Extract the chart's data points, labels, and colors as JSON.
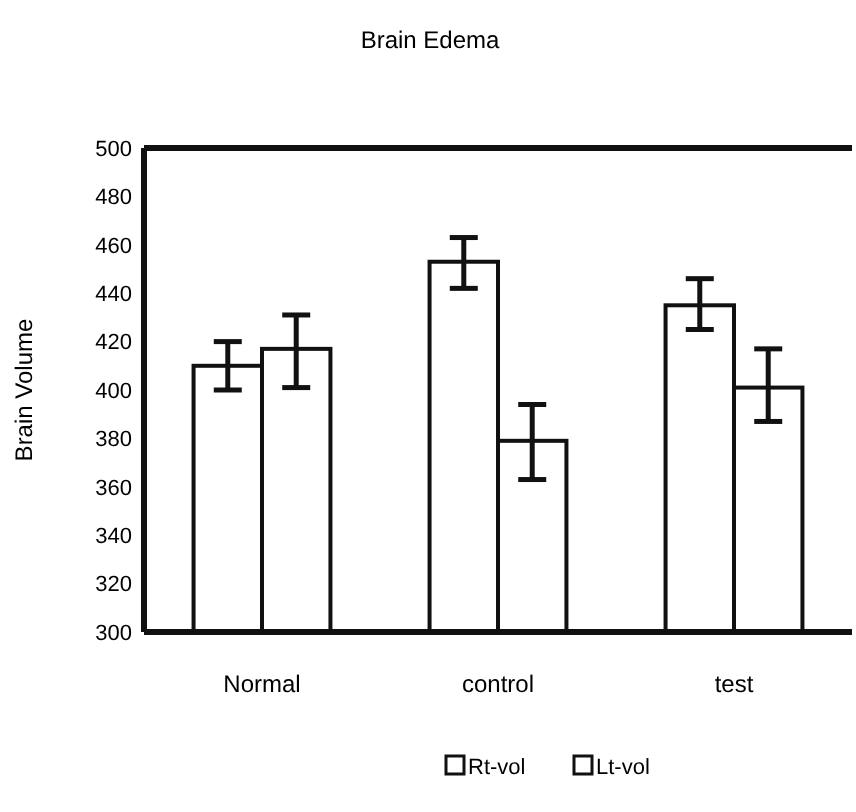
{
  "chart_data": {
    "type": "bar",
    "title": "Brain Edema",
    "ylabel": "Brain Volume",
    "categories": [
      "Normal",
      "control",
      "test"
    ],
    "series": [
      {
        "name": "Rt-vol",
        "color": "#ffffff",
        "values": [
          410,
          453,
          435
        ],
        "errors": [
          [
            400,
            420
          ],
          [
            442,
            463
          ],
          [
            425,
            446
          ]
        ]
      },
      {
        "name": "Lt-vol",
        "color": "#ffffff",
        "values": [
          417,
          379,
          401
        ],
        "errors": [
          [
            401,
            431
          ],
          [
            363,
            394
          ],
          [
            387,
            417
          ]
        ]
      }
    ],
    "ylim": [
      300,
      500
    ],
    "yticks": [
      300,
      320,
      340,
      360,
      380,
      400,
      420,
      440,
      460,
      480,
      500
    ],
    "grid": false,
    "legend": "bottom"
  }
}
